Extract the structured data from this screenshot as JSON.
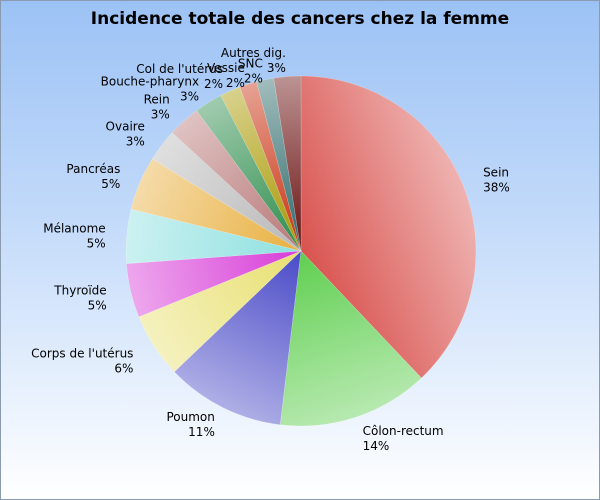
{
  "chart_data": {
    "type": "pie",
    "title": "Incidence totale des cancers chez la femme",
    "slices": [
      {
        "label": "Sein",
        "display": "38%",
        "value": 38.0,
        "color": "#d9534f"
      },
      {
        "label": "Côlon-rectum",
        "display": "14%",
        "value": 14.0,
        "color": "#5fcf4f"
      },
      {
        "label": "Poumon",
        "display": "11%",
        "value": 11.0,
        "color": "#4a4ac8"
      },
      {
        "label": "Corps de l'utérus",
        "display": "6%",
        "value": 6.0,
        "color": "#e8e070"
      },
      {
        "label": "Thyroïde",
        "display": "5%",
        "value": 5.0,
        "color": "#d83cd8"
      },
      {
        "label": "Mélanome",
        "display": "5%",
        "value": 5.0,
        "color": "#8ee0e0"
      },
      {
        "label": "Pancréas",
        "display": "5%",
        "value": 5.0,
        "color": "#e8b040"
      },
      {
        "label": "Ovaire",
        "display": "3%",
        "value": 3.0,
        "color": "#b8b8b8"
      },
      {
        "label": "Rein",
        "display": "3%",
        "value": 3.0,
        "color": "#b87878"
      },
      {
        "label": "Bouche-pharynx",
        "display": "3%",
        "value": 2.6,
        "color": "#2c8c4c"
      },
      {
        "label": "Col de l'utérus",
        "display": "2%",
        "value": 1.9,
        "color": "#a89800"
      },
      {
        "label": "Vessie",
        "display": "2%",
        "value": 1.6,
        "color": "#c83010"
      },
      {
        "label": "SNC",
        "display": "2%",
        "value": 1.6,
        "color": "#2e6a6a"
      },
      {
        "label": "Autres dig.",
        "display": "3%",
        "value": 2.5,
        "color": "#6a1010"
      }
    ]
  }
}
